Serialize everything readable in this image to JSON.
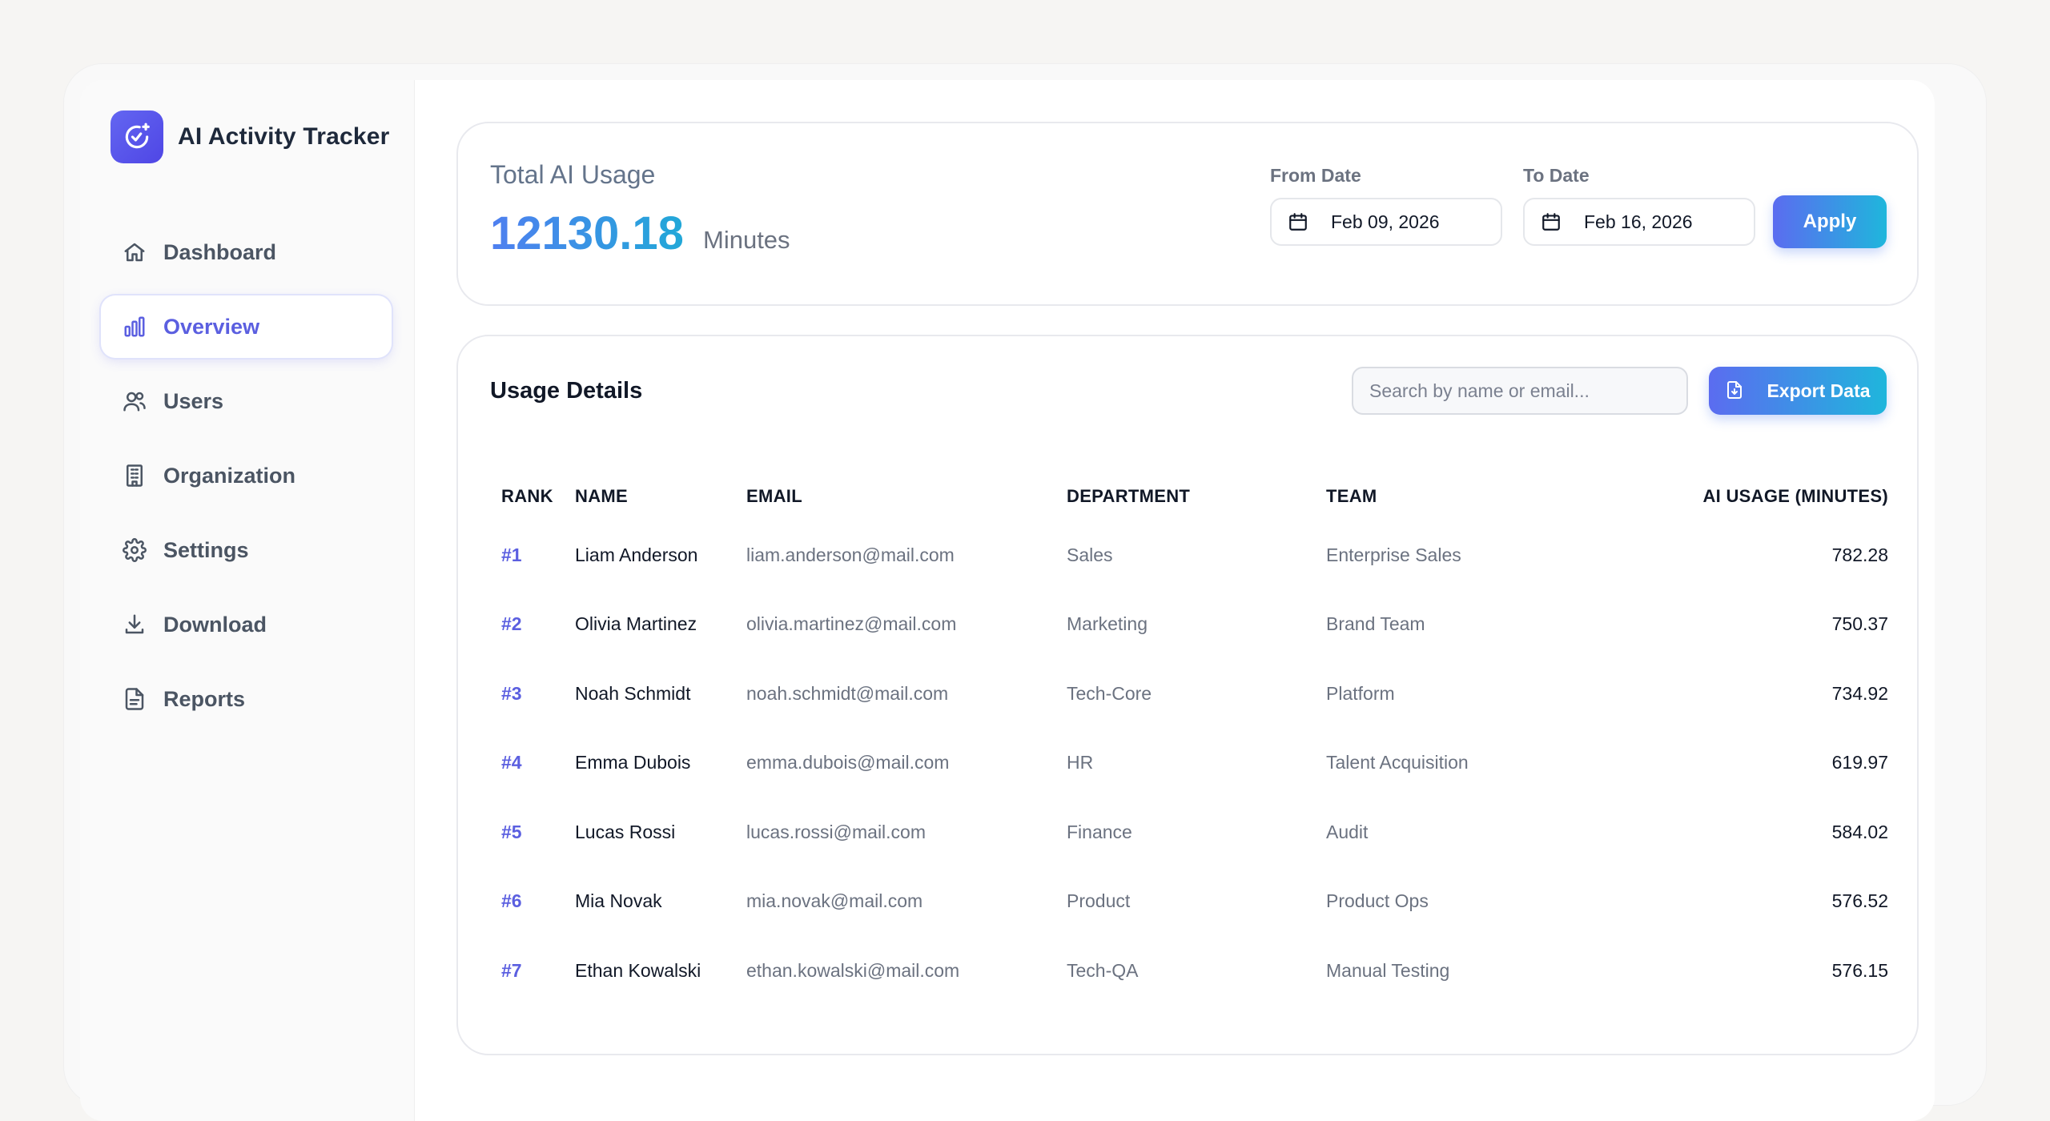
{
  "brand": {
    "title": "AI Activity Tracker",
    "icon": "clock-sparkle-icon"
  },
  "sidebar": {
    "items": [
      {
        "label": "Dashboard",
        "icon": "home-icon",
        "active": false
      },
      {
        "label": "Overview",
        "icon": "bar-chart-icon",
        "active": true
      },
      {
        "label": "Users",
        "icon": "users-icon",
        "active": false
      },
      {
        "label": "Organization",
        "icon": "building-icon",
        "active": false
      },
      {
        "label": "Settings",
        "icon": "gear-icon",
        "active": false
      },
      {
        "label": "Download",
        "icon": "download-icon",
        "active": false
      },
      {
        "label": "Reports",
        "icon": "document-icon",
        "active": false
      }
    ]
  },
  "usage": {
    "title": "Total AI Usage",
    "value": "12130.18",
    "unit": "Minutes",
    "from_label": "From Date",
    "from_value": "Feb 09, 2026",
    "to_label": "To Date",
    "to_value": "Feb 16, 2026",
    "apply_label": "Apply"
  },
  "details": {
    "title": "Usage Details",
    "search_placeholder": "Search by name or email...",
    "export_label": "Export Data",
    "columns": [
      "RANK",
      "NAME",
      "EMAIL",
      "DEPARTMENT",
      "TEAM",
      "AI USAGE (MINUTES)"
    ],
    "rows": [
      {
        "rank": "#1",
        "name": "Liam Anderson",
        "email": "liam.anderson@mail.com",
        "department": "Sales",
        "team": "Enterprise Sales",
        "usage": "782.28"
      },
      {
        "rank": "#2",
        "name": "Olivia Martinez",
        "email": "olivia.martinez@mail.com",
        "department": "Marketing",
        "team": "Brand Team",
        "usage": "750.37"
      },
      {
        "rank": "#3",
        "name": "Noah Schmidt",
        "email": "noah.schmidt@mail.com",
        "department": "Tech-Core",
        "team": "Platform",
        "usage": "734.92"
      },
      {
        "rank": "#4",
        "name": "Emma Dubois",
        "email": "emma.dubois@mail.com",
        "department": "HR",
        "team": "Talent Acquisition",
        "usage": "619.97"
      },
      {
        "rank": "#5",
        "name": "Lucas Rossi",
        "email": "lucas.rossi@mail.com",
        "department": "Finance",
        "team": "Audit",
        "usage": "584.02"
      },
      {
        "rank": "#6",
        "name": "Mia Novak",
        "email": "mia.novak@mail.com",
        "department": "Product",
        "team": "Product Ops",
        "usage": "576.52"
      },
      {
        "rank": "#7",
        "name": "Ethan Kowalski",
        "email": "ethan.kowalski@mail.com",
        "department": "Tech-QA",
        "team": "Manual Testing",
        "usage": "576.15"
      }
    ]
  },
  "colors": {
    "accent": "#5b5fe0",
    "gradient_start": "#5b6cf0",
    "gradient_end": "#1fb6dc"
  }
}
